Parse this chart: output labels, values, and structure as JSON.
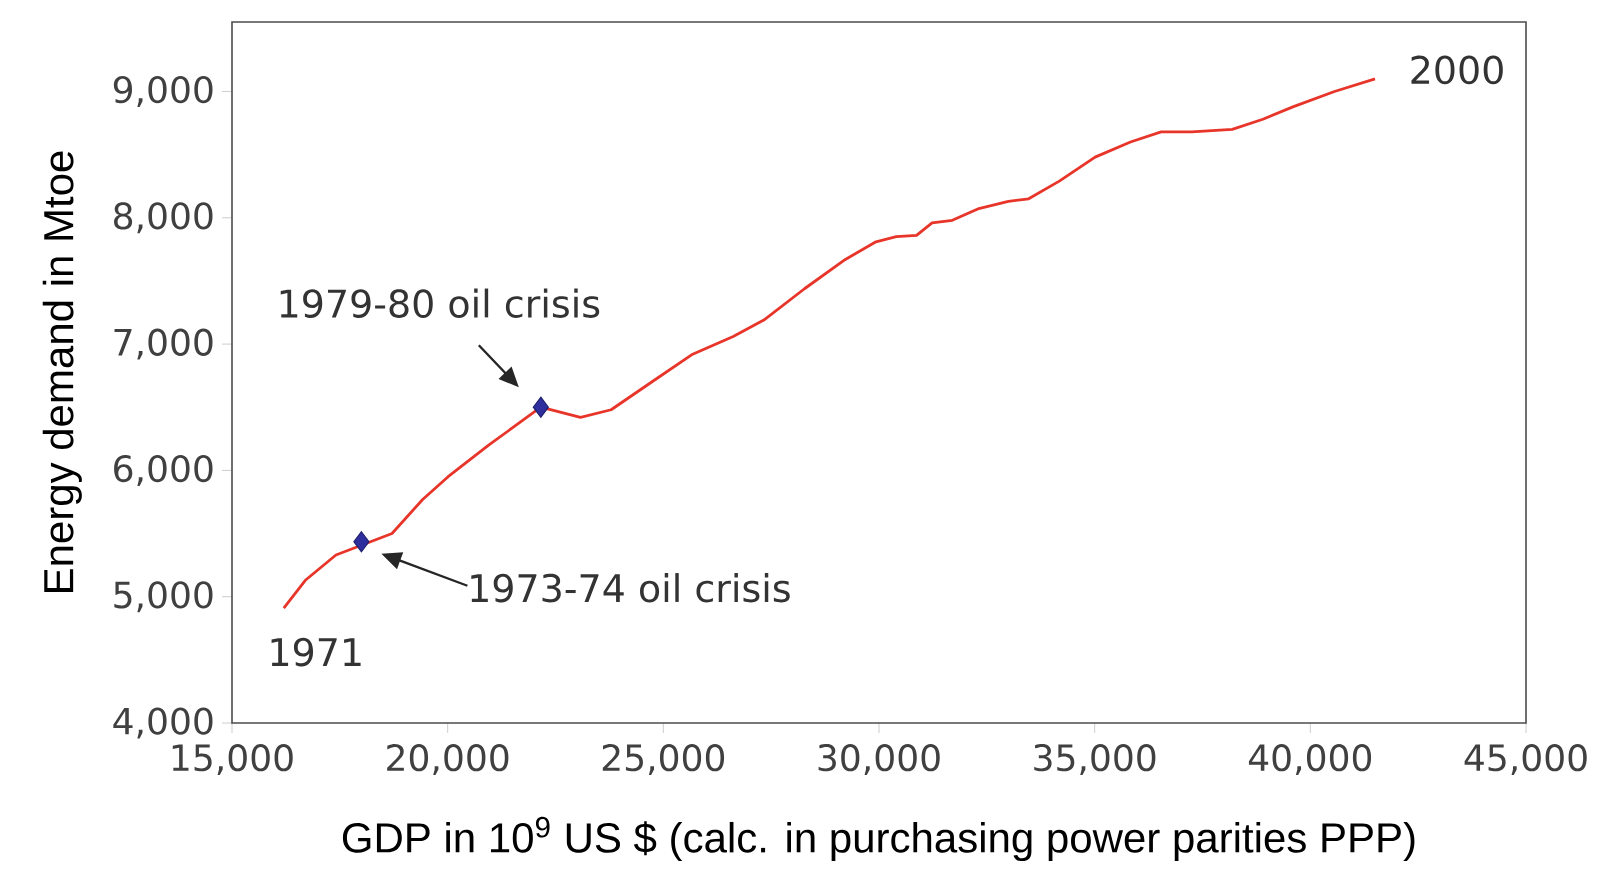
{
  "chart_data": {
    "type": "line",
    "xlabel": "GDP in 10$^{9}$ US $ (calc. in purchasing power parities PPP)",
    "ylabel": "Energy demand in Mtoe",
    "xlim": [
      15000,
      45000
    ],
    "ylim": [
      4000,
      9550
    ],
    "xticks": [
      {
        "value": 15000,
        "label": "15,000"
      },
      {
        "value": 20000,
        "label": "20,000"
      },
      {
        "value": 25000,
        "label": "25,000"
      },
      {
        "value": 30000,
        "label": "30,000"
      },
      {
        "value": 35000,
        "label": "35,000"
      },
      {
        "value": 40000,
        "label": "40,000"
      },
      {
        "value": 45000,
        "label": "45,000"
      }
    ],
    "yticks": [
      {
        "value": 4000,
        "label": "4,000"
      },
      {
        "value": 5000,
        "label": "5,000"
      },
      {
        "value": 6000,
        "label": "6,000"
      },
      {
        "value": 7000,
        "label": "7,000"
      },
      {
        "value": 8000,
        "label": "8,000"
      },
      {
        "value": 9000,
        "label": "9,000"
      }
    ],
    "series": [
      {
        "type": "line",
        "color": "#e8352a",
        "line_style": "solid",
        "marker": "none",
        "x": [
          16200,
          16700,
          17410,
          18710,
          19420,
          20010,
          20950,
          22160,
          23080,
          23790,
          24730,
          25680,
          26620,
          27330,
          28280,
          29220,
          29930,
          30400,
          30870,
          31230,
          31700,
          32290,
          33000,
          33470,
          34180,
          35010,
          35830,
          36540,
          37250,
          38190,
          38900,
          39610,
          40560,
          41500
        ],
        "values": [
          4910,
          5130,
          5330,
          5500,
          5770,
          5950,
          6200,
          6500,
          6420,
          6480,
          6700,
          6920,
          7060,
          7190,
          7440,
          7670,
          7810,
          7850,
          7860,
          7960,
          7980,
          8070,
          8130,
          8150,
          8290,
          8480,
          8600,
          8680,
          8680,
          8700,
          8780,
          8880,
          9000,
          9100
        ]
      },
      {
        "type": "scatter",
        "color": "#2e2e9e",
        "marker": "diamond",
        "x": [
          18000,
          22160
        ],
        "values": [
          5435,
          6500
        ]
      }
    ],
    "annotations": [
      {
        "text": "1971",
        "x": 16200,
        "y": 4910
      },
      {
        "text": "2000",
        "x": 41500,
        "y": 9100
      },
      "1973-74 oil crisis",
      {
        "text": "1979-80 oil crisis",
        "x": 22160,
        "y": 6500
      }
    ]
  }
}
